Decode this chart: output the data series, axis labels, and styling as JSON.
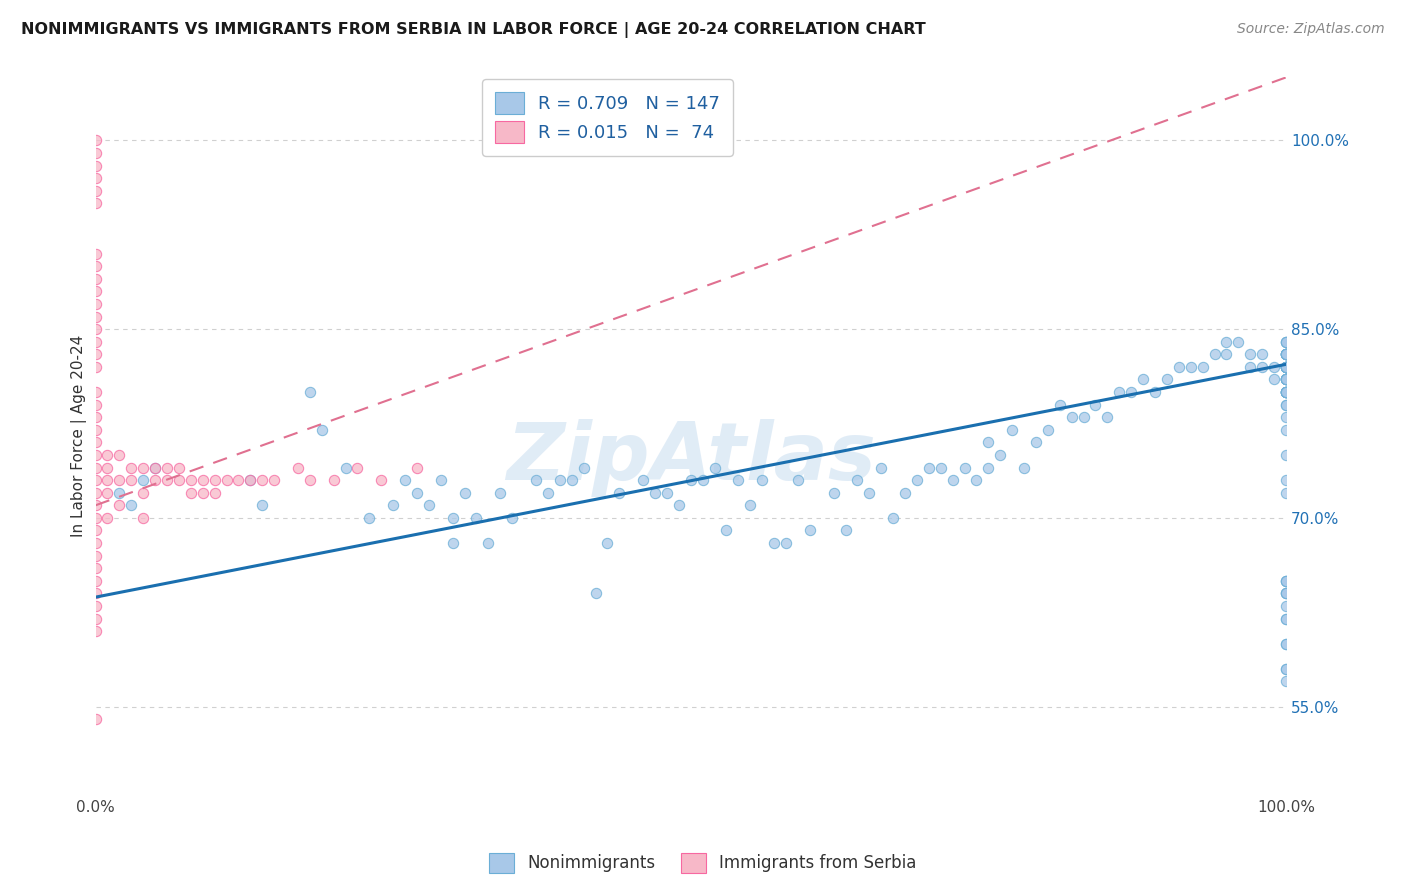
{
  "title": "NONIMMIGRANTS VS IMMIGRANTS FROM SERBIA IN LABOR FORCE | AGE 20-24 CORRELATION CHART",
  "source": "Source: ZipAtlas.com",
  "ylabel": "In Labor Force | Age 20-24",
  "y_tick_labels_right": [
    "55.0%",
    "70.0%",
    "85.0%",
    "100.0%"
  ],
  "y_tick_vals_right": [
    0.55,
    0.7,
    0.85,
    1.0
  ],
  "blue_color": "#a8c8e8",
  "blue_edge_color": "#6baed6",
  "pink_color": "#f7b8c8",
  "pink_edge_color": "#f768a1",
  "blue_line_color": "#1a6faf",
  "pink_line_color": "#e07090",
  "watermark": "ZipAtlas",
  "blue_line_x0": 0.0,
  "blue_line_x1": 1.0,
  "blue_line_y0": 0.637,
  "blue_line_y1": 0.822,
  "pink_line_x0": 0.0,
  "pink_line_x1": 1.0,
  "pink_line_y0": 0.71,
  "pink_line_y1": 1.05,
  "xlim": [
    0.0,
    1.0
  ],
  "ylim": [
    0.48,
    1.05
  ],
  "background_color": "#ffffff",
  "grid_color": "#d0d0d0",
  "blue_scatter_x": [
    0.02,
    0.03,
    0.04,
    0.05,
    0.13,
    0.14,
    0.18,
    0.19,
    0.21,
    0.23,
    0.25,
    0.26,
    0.27,
    0.28,
    0.29,
    0.3,
    0.3,
    0.31,
    0.32,
    0.33,
    0.34,
    0.35,
    0.37,
    0.38,
    0.39,
    0.4,
    0.41,
    0.42,
    0.43,
    0.44,
    0.46,
    0.47,
    0.48,
    0.49,
    0.5,
    0.51,
    0.52,
    0.53,
    0.54,
    0.55,
    0.56,
    0.57,
    0.58,
    0.59,
    0.6,
    0.62,
    0.63,
    0.64,
    0.65,
    0.66,
    0.67,
    0.68,
    0.69,
    0.7,
    0.71,
    0.72,
    0.73,
    0.74,
    0.75,
    0.75,
    0.76,
    0.77,
    0.78,
    0.79,
    0.8,
    0.81,
    0.82,
    0.83,
    0.84,
    0.85,
    0.86,
    0.87,
    0.88,
    0.89,
    0.9,
    0.91,
    0.92,
    0.93,
    0.94,
    0.95,
    0.95,
    0.96,
    0.97,
    0.97,
    0.98,
    0.98,
    0.99,
    0.99,
    1.0,
    1.0,
    1.0,
    1.0,
    1.0,
    1.0,
    1.0,
    1.0,
    1.0,
    1.0,
    1.0,
    1.0,
    1.0,
    1.0,
    1.0,
    1.0,
    1.0,
    1.0,
    1.0,
    1.0,
    1.0,
    1.0,
    1.0,
    1.0,
    1.0,
    1.0,
    1.0,
    1.0,
    1.0,
    1.0,
    1.0,
    1.0,
    1.0,
    1.0,
    1.0,
    1.0,
    1.0,
    1.0,
    1.0,
    1.0,
    1.0,
    1.0,
    1.0,
    1.0,
    1.0,
    1.0,
    1.0,
    1.0,
    1.0,
    1.0,
    1.0,
    1.0,
    1.0,
    1.0,
    1.0,
    1.0
  ],
  "blue_scatter_y": [
    0.72,
    0.71,
    0.73,
    0.74,
    0.73,
    0.71,
    0.8,
    0.77,
    0.74,
    0.7,
    0.71,
    0.73,
    0.72,
    0.71,
    0.73,
    0.7,
    0.68,
    0.72,
    0.7,
    0.68,
    0.72,
    0.7,
    0.73,
    0.72,
    0.73,
    0.73,
    0.74,
    0.64,
    0.68,
    0.72,
    0.73,
    0.72,
    0.72,
    0.71,
    0.73,
    0.73,
    0.74,
    0.69,
    0.73,
    0.71,
    0.73,
    0.68,
    0.68,
    0.73,
    0.69,
    0.72,
    0.69,
    0.73,
    0.72,
    0.74,
    0.7,
    0.72,
    0.73,
    0.74,
    0.74,
    0.73,
    0.74,
    0.73,
    0.74,
    0.76,
    0.75,
    0.77,
    0.74,
    0.76,
    0.77,
    0.79,
    0.78,
    0.78,
    0.79,
    0.78,
    0.8,
    0.8,
    0.81,
    0.8,
    0.81,
    0.82,
    0.82,
    0.82,
    0.83,
    0.83,
    0.84,
    0.84,
    0.82,
    0.83,
    0.82,
    0.83,
    0.82,
    0.81,
    0.8,
    0.81,
    0.8,
    0.79,
    0.81,
    0.8,
    0.82,
    0.81,
    0.8,
    0.8,
    0.82,
    0.83,
    0.81,
    0.82,
    0.83,
    0.8,
    0.82,
    0.81,
    0.83,
    0.82,
    0.84,
    0.83,
    0.82,
    0.83,
    0.84,
    0.82,
    0.83,
    0.84,
    0.83,
    0.81,
    0.82,
    0.83,
    0.81,
    0.82,
    0.8,
    0.8,
    0.79,
    0.78,
    0.77,
    0.75,
    0.73,
    0.72,
    0.63,
    0.65,
    0.64,
    0.62,
    0.6,
    0.58,
    0.65,
    0.64,
    0.62,
    0.6,
    0.58,
    0.57,
    0.65,
    0.64
  ],
  "pink_scatter_x": [
    0.0,
    0.0,
    0.0,
    0.0,
    0.0,
    0.0,
    0.0,
    0.0,
    0.0,
    0.0,
    0.0,
    0.0,
    0.0,
    0.0,
    0.0,
    0.0,
    0.0,
    0.0,
    0.0,
    0.0,
    0.0,
    0.0,
    0.0,
    0.0,
    0.0,
    0.0,
    0.0,
    0.0,
    0.0,
    0.0,
    0.0,
    0.0,
    0.0,
    0.0,
    0.0,
    0.0,
    0.0,
    0.01,
    0.01,
    0.01,
    0.01,
    0.01,
    0.02,
    0.02,
    0.02,
    0.03,
    0.03,
    0.04,
    0.04,
    0.04,
    0.05,
    0.05,
    0.06,
    0.06,
    0.07,
    0.07,
    0.08,
    0.08,
    0.09,
    0.09,
    0.1,
    0.1,
    0.11,
    0.12,
    0.13,
    0.14,
    0.15,
    0.17,
    0.18,
    0.2,
    0.22,
    0.24,
    0.27
  ],
  "pink_scatter_y": [
    1.0,
    0.99,
    0.98,
    0.97,
    0.96,
    0.95,
    0.91,
    0.9,
    0.89,
    0.88,
    0.87,
    0.86,
    0.85,
    0.84,
    0.83,
    0.82,
    0.8,
    0.79,
    0.78,
    0.77,
    0.76,
    0.75,
    0.74,
    0.73,
    0.72,
    0.71,
    0.7,
    0.69,
    0.68,
    0.67,
    0.66,
    0.65,
    0.64,
    0.63,
    0.62,
    0.61,
    0.54,
    0.75,
    0.74,
    0.73,
    0.72,
    0.7,
    0.75,
    0.73,
    0.71,
    0.74,
    0.73,
    0.74,
    0.72,
    0.7,
    0.74,
    0.73,
    0.74,
    0.73,
    0.74,
    0.73,
    0.73,
    0.72,
    0.73,
    0.72,
    0.73,
    0.72,
    0.73,
    0.73,
    0.73,
    0.73,
    0.73,
    0.74,
    0.73,
    0.73,
    0.74,
    0.73,
    0.74
  ]
}
